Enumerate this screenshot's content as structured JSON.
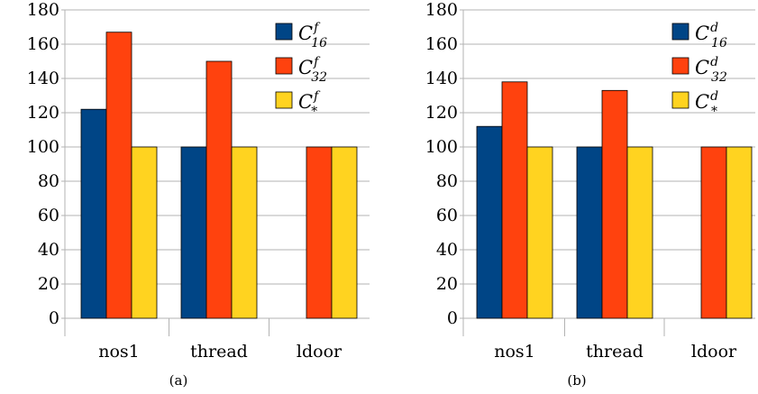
{
  "chart_data": [
    {
      "type": "bar",
      "caption": "(a)",
      "categories": [
        "nos1",
        "thread",
        "ldoor"
      ],
      "ylim": [
        0,
        180
      ],
      "yticks": [
        0,
        20,
        40,
        60,
        80,
        100,
        120,
        140,
        160,
        180
      ],
      "grid": true,
      "legend_position": "top-right",
      "series": [
        {
          "name": "C",
          "sup": "f",
          "sub": "16",
          "color": "#004586",
          "values": [
            122,
            100,
            null
          ]
        },
        {
          "name": "C",
          "sup": "f",
          "sub": "32",
          "color": "#ff420e",
          "values": [
            167,
            150,
            100
          ]
        },
        {
          "name": "C",
          "sup": "f",
          "sub": "*",
          "color": "#ffd320",
          "values": [
            100,
            100,
            100
          ]
        }
      ]
    },
    {
      "type": "bar",
      "caption": "(b)",
      "categories": [
        "nos1",
        "thread",
        "ldoor"
      ],
      "ylim": [
        0,
        180
      ],
      "yticks": [
        0,
        20,
        40,
        60,
        80,
        100,
        120,
        140,
        160,
        180
      ],
      "grid": true,
      "legend_position": "top-right",
      "series": [
        {
          "name": "C",
          "sup": "d",
          "sub": "16",
          "color": "#004586",
          "values": [
            112,
            100,
            null
          ]
        },
        {
          "name": "C",
          "sup": "d",
          "sub": "32",
          "color": "#ff420e",
          "values": [
            138,
            133,
            100
          ]
        },
        {
          "name": "C",
          "sup": "d",
          "sub": "*",
          "color": "#ffd320",
          "values": [
            100,
            100,
            100
          ]
        }
      ]
    }
  ]
}
